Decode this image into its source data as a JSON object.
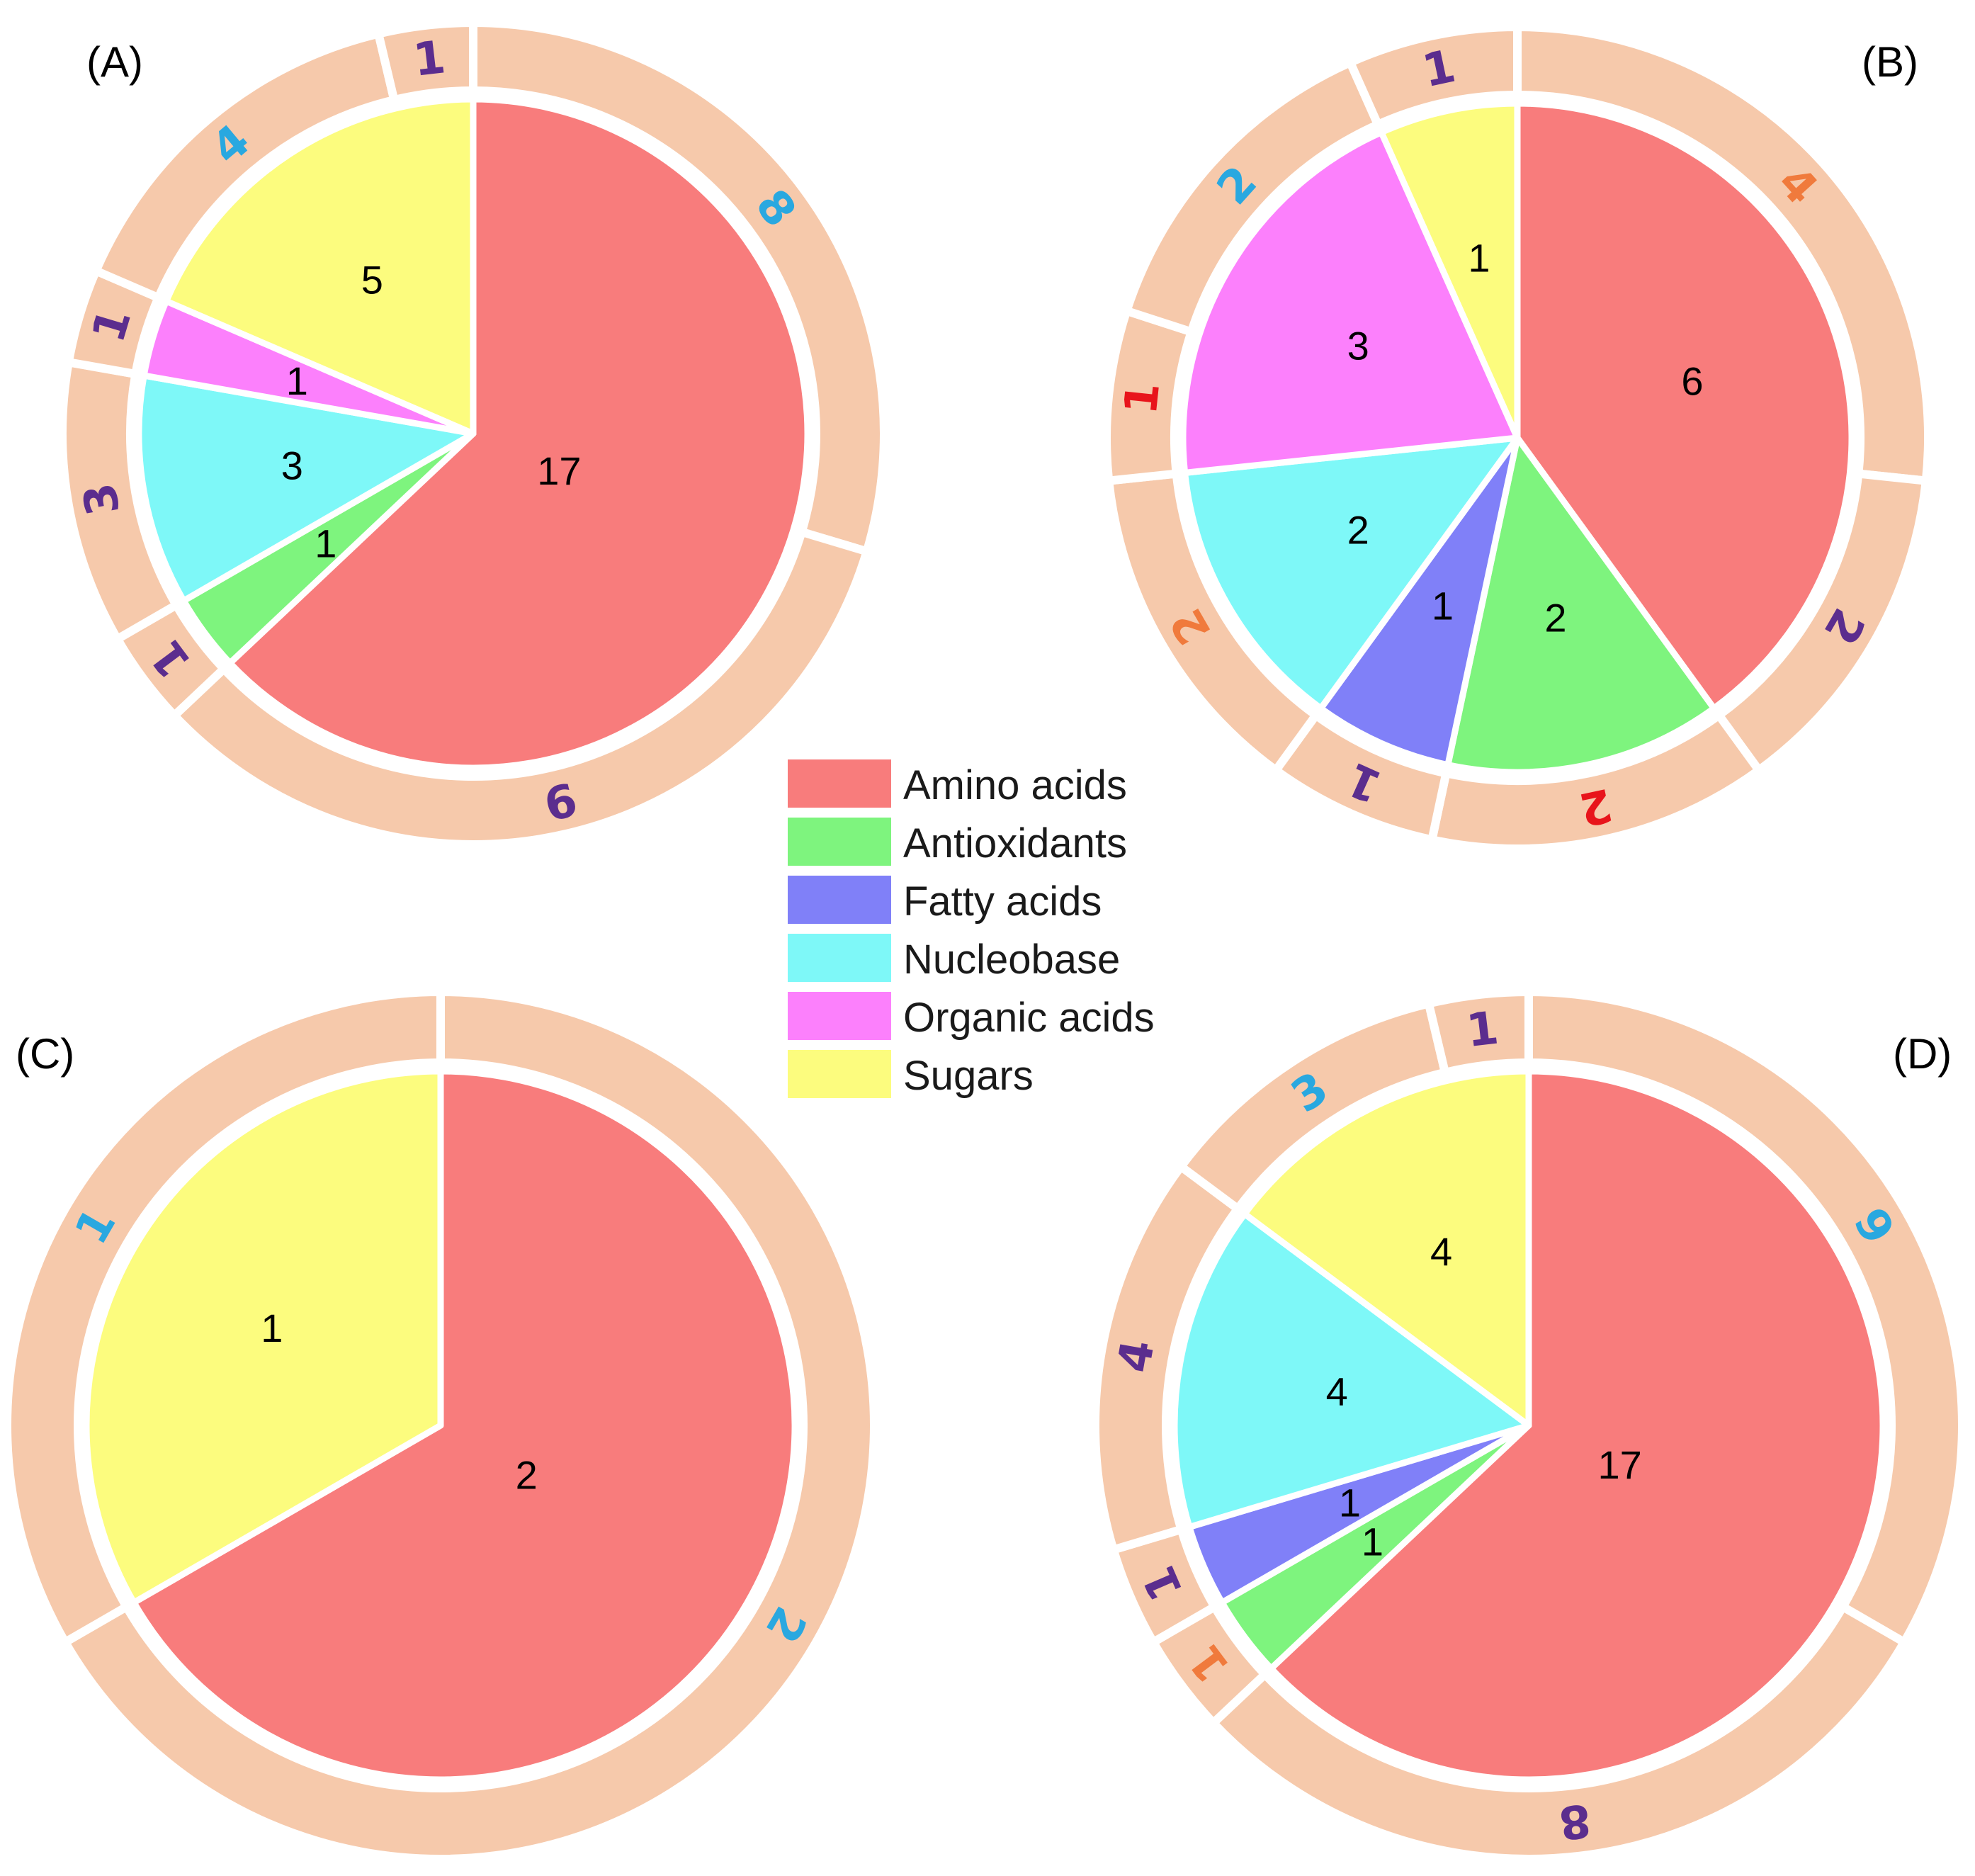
{
  "chart_data": [
    {
      "type": "pie",
      "panel": "(A)",
      "categories": [
        "Amino acids",
        "Antioxidants",
        "Nucleobase",
        "Organic acids",
        "Sugars"
      ],
      "values": [
        17,
        1,
        3,
        1,
        5
      ],
      "value_labels": [
        "17",
        "1",
        "3",
        "1",
        "5"
      ],
      "outer_ring": [
        {
          "label": "8",
          "value": 8,
          "color": "#29a8e0"
        },
        {
          "label": "9",
          "value": 9,
          "color": "#5b2d8e"
        },
        {
          "label": "1",
          "value": 1,
          "color": "#5b2d8e"
        },
        {
          "label": "3",
          "value": 3,
          "color": "#5b2d8e"
        },
        {
          "label": "1",
          "value": 1,
          "color": "#5b2d8e"
        },
        {
          "label": "4",
          "value": 4,
          "color": "#29a8e0"
        },
        {
          "label": "1",
          "value": 1,
          "color": "#5b2d8e"
        }
      ]
    },
    {
      "type": "pie",
      "panel": "(B)",
      "categories": [
        "Amino acids",
        "Antioxidants",
        "Fatty acids",
        "Nucleobase",
        "Organic acids",
        "Sugars"
      ],
      "values": [
        6,
        2,
        1,
        2,
        3,
        1
      ],
      "value_labels": [
        "6",
        "2",
        "1",
        "2",
        "3",
        "1"
      ],
      "outer_ring": [
        {
          "label": "4",
          "value": 4,
          "color": "#f07a3c"
        },
        {
          "label": "2",
          "value": 2,
          "color": "#5b2d8e"
        },
        {
          "label": "2",
          "value": 2,
          "color": "#e8141b"
        },
        {
          "label": "1",
          "value": 1,
          "color": "#5b2d8e"
        },
        {
          "label": "2",
          "value": 2,
          "color": "#f07a3c"
        },
        {
          "label": "1",
          "value": 1,
          "color": "#e8141b"
        },
        {
          "label": "2",
          "value": 2,
          "color": "#29a8e0"
        },
        {
          "label": "1",
          "value": 1,
          "color": "#5b2d8e"
        }
      ]
    },
    {
      "type": "pie",
      "panel": "(C)",
      "categories": [
        "Amino acids",
        "Sugars"
      ],
      "values": [
        2,
        1
      ],
      "value_labels": [
        "2",
        "1"
      ],
      "outer_ring": [
        {
          "label": "2",
          "value": 2,
          "color": "#29a8e0"
        },
        {
          "label": "1",
          "value": 1,
          "color": "#29a8e0"
        }
      ]
    },
    {
      "type": "pie",
      "panel": "(D)",
      "categories": [
        "Amino acids",
        "Antioxidants",
        "Fatty acids",
        "Nucleobase",
        "Sugars"
      ],
      "values": [
        17,
        1,
        1,
        4,
        4
      ],
      "value_labels": [
        "17",
        "1",
        "1",
        "4",
        "4"
      ],
      "outer_ring": [
        {
          "label": "9",
          "value": 9,
          "color": "#29a8e0"
        },
        {
          "label": "8",
          "value": 8,
          "color": "#5b2d8e"
        },
        {
          "label": "1",
          "value": 1,
          "color": "#f07a3c"
        },
        {
          "label": "1",
          "value": 1,
          "color": "#5b2d8e"
        },
        {
          "label": "4",
          "value": 4,
          "color": "#5b2d8e"
        },
        {
          "label": "3",
          "value": 3,
          "color": "#29a8e0"
        },
        {
          "label": "1",
          "value": 1,
          "color": "#5b2d8e"
        }
      ]
    }
  ],
  "legend": [
    {
      "label": "Amino acids",
      "color": "#f87c7c"
    },
    {
      "label": "Antioxidants",
      "color": "#7ef47e"
    },
    {
      "label": "Fatty acids",
      "color": "#8080f8"
    },
    {
      "label": "Nucleobase",
      "color": "#7ef8f8"
    },
    {
      "label": "Organic acids",
      "color": "#fc80fc"
    },
    {
      "label": "Sugars",
      "color": "#fcfc7e"
    }
  ],
  "colors": {
    "ring": "#f6c9ab",
    "separator": "#ffffff"
  }
}
